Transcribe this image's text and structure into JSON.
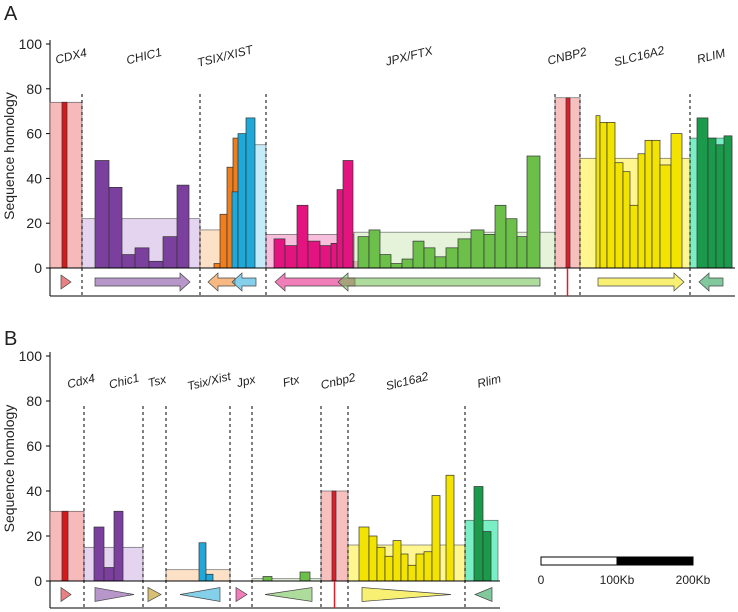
{
  "chart_data": [
    {
      "panel": "A",
      "type": "bar",
      "ylabel": "Sequence homology",
      "ylim": [
        0,
        100
      ],
      "yticks": [
        0,
        20,
        40,
        60,
        80,
        100
      ],
      "genes": [
        {
          "name": "CDX4",
          "color": "#d7191c",
          "fill": "#f4a3a3",
          "mean": 74,
          "bars": [
            74
          ],
          "arrow": "right"
        },
        {
          "name": "CHIC1",
          "color": "#7b3f9e",
          "fill": "#dcc6ea",
          "mean": 22,
          "bars": [
            48,
            36,
            6,
            9,
            3,
            14,
            37
          ],
          "arrow": "right"
        },
        {
          "name": "TSIX",
          "color": "#f07e1c",
          "fill": "#fbd7b4",
          "mean": 17,
          "bars": [
            2,
            24,
            45,
            58
          ],
          "arrow": "left"
        },
        {
          "name": "XIST",
          "color": "#1fa8d8",
          "fill": "#b3e4f5",
          "mean": 55,
          "bars": [
            34,
            60,
            67
          ],
          "arrow": "left"
        },
        {
          "name": "JPX",
          "color": "#e3147f",
          "fill": "#f5a9d2",
          "mean": 15,
          "bars": [
            13,
            10,
            28,
            12,
            10,
            11,
            35,
            48,
            3
          ],
          "arrow": "left"
        },
        {
          "name": "FTX",
          "color": "#6cc04a",
          "fill": "#dcefcf",
          "mean": 16,
          "bars": [
            14,
            17,
            6,
            2,
            4,
            12,
            9,
            5,
            9,
            13,
            17,
            15,
            28,
            22,
            14,
            50
          ],
          "arrow": "left"
        },
        {
          "name": "CNBP2",
          "color": "#e01d2a",
          "fill": "#f6a9a9",
          "mean": 76,
          "bars": [
            76
          ],
          "arrow": "none"
        },
        {
          "name": "SLC16A2",
          "color": "#f2e300",
          "fill": "#fff36a",
          "mean": 49,
          "bars": [
            68,
            65,
            65,
            47,
            43,
            28,
            51,
            57,
            57,
            46,
            60
          ],
          "arrow": "right"
        },
        {
          "name": "RLIM",
          "color": "#1c9a4c",
          "fill": "#4de8b0",
          "mean": 58,
          "bars": [
            67,
            58,
            55,
            59
          ],
          "arrow": "left"
        }
      ],
      "gene_labels": [
        "CDX4",
        "CHIC1",
        "TSIX/XIST",
        "JPX/FTX",
        "CNBP2",
        "SLC16A2",
        "RLIM"
      ]
    },
    {
      "panel": "B",
      "type": "bar",
      "ylabel": "Sequence homology",
      "ylim": [
        0,
        100
      ],
      "yticks": [
        0,
        20,
        40,
        60,
        80,
        100
      ],
      "genes": [
        {
          "name": "Cdx4",
          "color": "#d7191c",
          "fill": "#f4a3a3",
          "mean": 31,
          "bars": [
            31
          ],
          "arrow": "right"
        },
        {
          "name": "Chic1",
          "color": "#7b3f9e",
          "fill": "#dcc6ea",
          "mean": 15,
          "bars": [
            24,
            6,
            31
          ],
          "arrow": "right"
        },
        {
          "name": "Tsx",
          "color": "#b88a00",
          "fill": "#e6c34a",
          "mean": 0,
          "bars": [],
          "arrow": "right"
        },
        {
          "name": "Tsix/Xist",
          "color": "#1fa8d8",
          "fill": "#fbd7b4",
          "mean": 5,
          "bars": [
            17,
            3
          ],
          "arrow": "left"
        },
        {
          "name": "Jpx",
          "color": "#e3147f",
          "fill": "#f5a9d2",
          "mean": 0,
          "bars": [],
          "arrow": "right"
        },
        {
          "name": "Ftx",
          "color": "#6cc04a",
          "fill": "#dcefcf",
          "mean": 1,
          "bars": [
            2,
            4
          ],
          "arrow": "left"
        },
        {
          "name": "Cnbp2",
          "color": "#e01d2a",
          "fill": "#f6a9a9",
          "mean": 40,
          "bars": [
            40
          ],
          "arrow": "none"
        },
        {
          "name": "Slc16a2",
          "color": "#f2e300",
          "fill": "#fff36a",
          "mean": 16,
          "bars": [
            24,
            20,
            15,
            11,
            18,
            12,
            7,
            12,
            13,
            38,
            47
          ],
          "arrow": "right"
        },
        {
          "name": "Rlim",
          "color": "#1c9a4c",
          "fill": "#4de8b0",
          "mean": 27,
          "bars": [
            42,
            22
          ],
          "arrow": "left"
        }
      ],
      "gene_labels": [
        "Cdx4",
        "Chic1",
        "Tsx",
        "Tsix/Xist",
        "Jpx",
        "Ftx",
        "Cnbp2",
        "Slc16a2",
        "Rlim"
      ]
    }
  ],
  "scale_bar": {
    "labels": [
      "0",
      "100Kb",
      "200Kb"
    ]
  }
}
